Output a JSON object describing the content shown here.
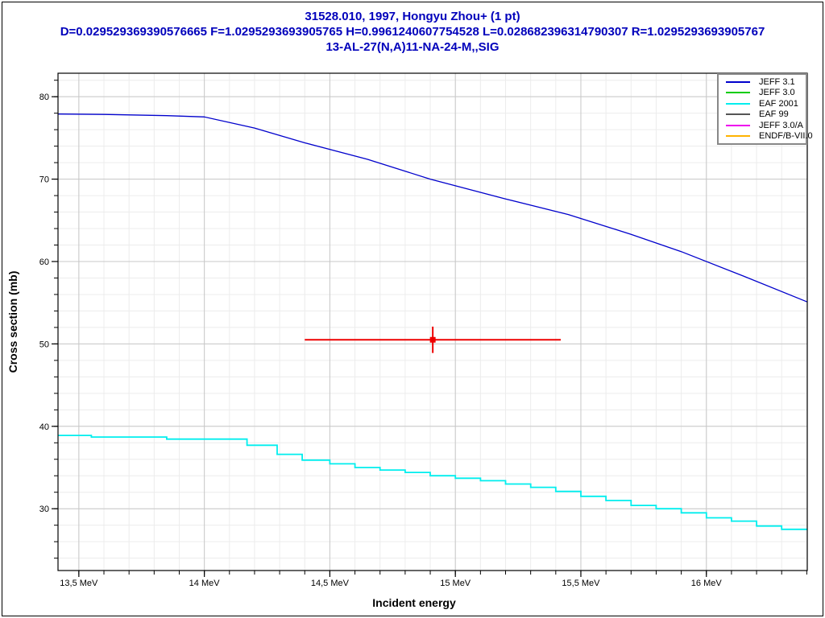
{
  "header": {
    "line1": "31528.010, 1997, Hongyu Zhou+ (1 pt)",
    "line2": "D=0.029529369390576665 F=1.0295293693905765 H=0.9961240607754528 L=0.028682396314790307 R=1.0295293693905767",
    "line3": "13-AL-27(N,A)11-NA-24-M,,SIG",
    "color": "#0000BB"
  },
  "chart_data": {
    "type": "line",
    "title": "31528.010, 1997, Hongyu Zhou+ (1 pt)",
    "xlabel": "Incident energy",
    "ylabel": "Cross section (mb)",
    "x_unit": "MeV",
    "xlim": [
      13.417,
      16.402
    ],
    "ylim": [
      22.5,
      82.85
    ],
    "x_major_ticks": [
      13.5,
      14.0,
      14.5,
      15.0,
      15.5,
      16.0
    ],
    "x_tick_labels": [
      "13,5 MeV",
      "14 MeV",
      "14,5 MeV",
      "15 MeV",
      "15,5 MeV",
      "16 MeV"
    ],
    "x_minor_step": 0.1,
    "y_major_ticks": [
      30,
      40,
      50,
      60,
      70,
      80
    ],
    "y_minor_step": 2,
    "grid": {
      "major_color": "#c8c8c8",
      "minor_color": "#ececec"
    },
    "legend": {
      "position": "top-right",
      "entries": [
        {
          "label": "JEFF 3.1",
          "color": "#0000CC"
        },
        {
          "label": "JEFF 3.0",
          "color": "#00CC00"
        },
        {
          "label": "EAF 2001",
          "color": "#00EEEE"
        },
        {
          "label": "EAF 99",
          "color": "#555555"
        },
        {
          "label": "JEFF 3.0/A",
          "color": "#EE00EE"
        },
        {
          "label": "ENDF/B-VII.0",
          "color": "#FFB300"
        }
      ]
    },
    "series": [
      {
        "name": "JEFF 3.1",
        "color": "#0000CC",
        "style": "line",
        "points": [
          [
            13.417,
            77.9
          ],
          [
            13.6,
            77.85
          ],
          [
            13.85,
            77.7
          ],
          [
            14.0,
            77.55
          ],
          [
            14.2,
            76.2
          ],
          [
            14.4,
            74.4
          ],
          [
            14.65,
            72.4
          ],
          [
            14.9,
            70.0
          ],
          [
            15.2,
            67.6
          ],
          [
            15.45,
            65.7
          ],
          [
            15.7,
            63.3
          ],
          [
            15.9,
            61.2
          ],
          [
            16.15,
            58.2
          ],
          [
            16.402,
            55.1
          ]
        ]
      },
      {
        "name": "EAF 2001",
        "color": "#00EEEE",
        "style": "step",
        "points": [
          [
            13.417,
            38.9
          ],
          [
            13.55,
            38.7
          ],
          [
            13.85,
            38.45
          ],
          [
            14.17,
            37.7
          ],
          [
            14.29,
            36.6
          ],
          [
            14.39,
            35.9
          ],
          [
            14.5,
            35.45
          ],
          [
            14.6,
            35.0
          ],
          [
            14.7,
            34.7
          ],
          [
            14.8,
            34.4
          ],
          [
            14.9,
            34.0
          ],
          [
            15.0,
            33.7
          ],
          [
            15.1,
            33.4
          ],
          [
            15.2,
            33.0
          ],
          [
            15.3,
            32.6
          ],
          [
            15.4,
            32.1
          ],
          [
            15.5,
            31.5
          ],
          [
            15.6,
            31.0
          ],
          [
            15.7,
            30.4
          ],
          [
            15.8,
            30.0
          ],
          [
            15.9,
            29.5
          ],
          [
            16.0,
            28.9
          ],
          [
            16.1,
            28.5
          ],
          [
            16.2,
            27.9
          ],
          [
            16.3,
            27.5
          ],
          [
            16.402,
            27.5
          ]
        ]
      }
    ],
    "experimental_points": [
      {
        "label": "31528.010, 1997, Hongyu Zhou+",
        "color": "#EE0000",
        "x": 14.91,
        "y": 50.5,
        "xerr": 0.51,
        "yerr": 1.6
      }
    ]
  }
}
